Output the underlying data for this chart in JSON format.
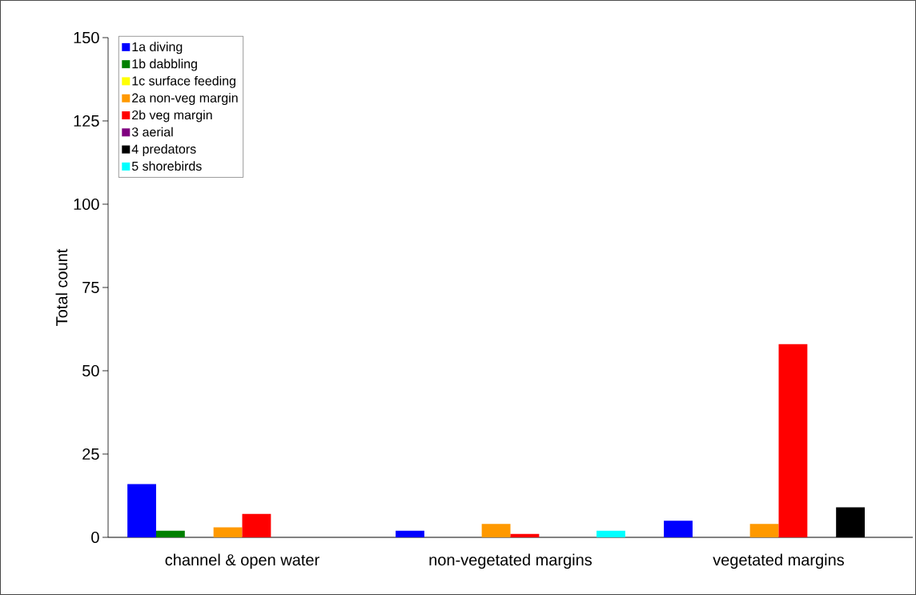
{
  "chart_data": {
    "type": "bar",
    "ylabel": "Total count",
    "categories": [
      "channel & open water",
      "non-vegetated margins",
      "vegetated margins"
    ],
    "series": [
      {
        "name": "1a diving",
        "color": "#0000ff",
        "values": [
          16,
          2,
          5
        ]
      },
      {
        "name": "1b dabbling",
        "color": "#008000",
        "values": [
          2,
          0,
          0
        ]
      },
      {
        "name": "1c surface feeding",
        "color": "#ffff00",
        "values": [
          0,
          0,
          0
        ]
      },
      {
        "name": "2a non-veg margin",
        "color": "#ff9900",
        "values": [
          3,
          4,
          4
        ]
      },
      {
        "name": "2b veg margin",
        "color": "#ff0000",
        "values": [
          7,
          1,
          58
        ]
      },
      {
        "name": "3 aerial",
        "color": "#800080",
        "values": [
          0,
          0,
          0
        ]
      },
      {
        "name": "4 predators",
        "color": "#000000",
        "values": [
          0,
          0,
          9
        ]
      },
      {
        "name": "5 shorebirds",
        "color": "#00ffff",
        "values": [
          0,
          2,
          0
        ]
      }
    ],
    "ylim": [
      0,
      150
    ],
    "yticks": [
      0,
      25,
      50,
      75,
      100,
      125,
      150
    ],
    "grid": false,
    "legend": "top left"
  }
}
